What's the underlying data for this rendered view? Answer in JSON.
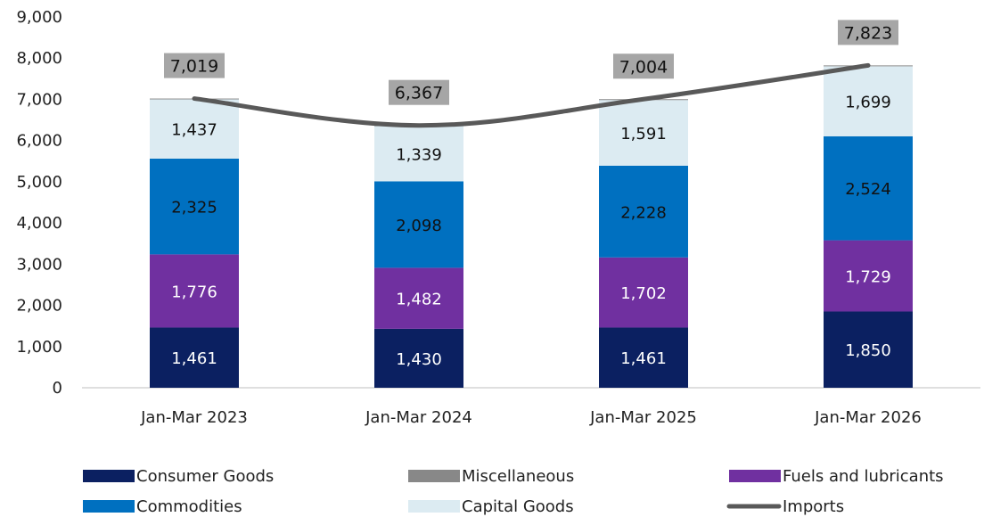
{
  "chart_data": {
    "type": "bar",
    "stacked": true,
    "categories": [
      "Jan-Mar 2023",
      "Jan-Mar 2024",
      "Jan-Mar 2025",
      "Jan-Mar 2026"
    ],
    "series": [
      {
        "name": "Consumer Goods",
        "values": [
          1461,
          1430,
          1461,
          1850
        ],
        "labels": [
          "1,461",
          "1,430",
          "1,461",
          "1,850"
        ],
        "color": "#0b2061",
        "label_color": "#ffffff"
      },
      {
        "name": "Fuels and lubricants",
        "values": [
          1776,
          1482,
          1702,
          1729
        ],
        "labels": [
          "1,776",
          "1,482",
          "1,702",
          "1,729"
        ],
        "color": "#7030a0",
        "label_color": "#ffffff"
      },
      {
        "name": "Commodities",
        "values": [
          2325,
          2098,
          2228,
          2524
        ],
        "labels": [
          "2,325",
          "2,098",
          "2,228",
          "2,524"
        ],
        "color": "#0070c0",
        "label_color": "#111111"
      },
      {
        "name": "Capital Goods",
        "values": [
          1437,
          1339,
          1591,
          1699
        ],
        "labels": [
          "1,437",
          "1,339",
          "1,591",
          "1,699"
        ],
        "color": "#dcebf2",
        "label_color": "#111111"
      },
      {
        "name": "Miscellaneous",
        "values": [
          20,
          18,
          22,
          21
        ],
        "color": "#888888"
      }
    ],
    "line": {
      "name": "Imports",
      "values": [
        7019,
        6367,
        7004,
        7823
      ],
      "labels": [
        "7,019",
        "6,367",
        "7,004",
        "7,823"
      ],
      "color": "#595959"
    },
    "total_label_bg": "#a6a6a6",
    "yticks": [
      "0",
      "1,000",
      "2,000",
      "3,000",
      "4,000",
      "5,000",
      "6,000",
      "7,000",
      "8,000",
      "9,000"
    ],
    "ylim": [
      0,
      9000
    ],
    "grid": false,
    "legend_position": "bottom",
    "legend": [
      {
        "name": "Consumer Goods",
        "kind": "box",
        "color": "#0b2061"
      },
      {
        "name": "Miscellaneous",
        "kind": "box",
        "color": "#888888"
      },
      {
        "name": "Fuels and lubricants",
        "kind": "box",
        "color": "#7030a0"
      },
      {
        "name": "Commodities",
        "kind": "box",
        "color": "#0070c0"
      },
      {
        "name": "Capital Goods",
        "kind": "box",
        "color": "#dcebf2"
      },
      {
        "name": "Imports",
        "kind": "line",
        "color": "#595959"
      }
    ]
  }
}
